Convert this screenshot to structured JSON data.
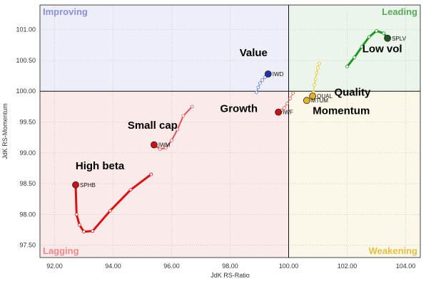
{
  "chart_data": {
    "type": "scatter",
    "xlabel": "JdK RS-Ratio",
    "ylabel": "JdK RS-Momentum",
    "xlim": [
      91.5,
      104.5
    ],
    "ylim": [
      97.3,
      101.4
    ],
    "center": [
      100,
      100
    ],
    "grid": true,
    "x_ticks": [
      92,
      94,
      96,
      98,
      100,
      102,
      104
    ],
    "x_tick_labels": [
      "92.00",
      "94.00",
      "96.00",
      "98.00",
      "100.00",
      "102.00",
      "104.00"
    ],
    "y_ticks": [
      97.5,
      98,
      98.5,
      99,
      99.5,
      100,
      100.5,
      101
    ],
    "y_tick_labels": [
      "97.50",
      "98.00",
      "98.50",
      "99.00",
      "99.50",
      "100.00",
      "100.50",
      "101.00"
    ],
    "quadrants": [
      {
        "name": "Improving",
        "position": "top-left",
        "color": "#8a8fd8",
        "fill": "#eeeef9"
      },
      {
        "name": "Leading",
        "position": "top-right",
        "color": "#55aa55",
        "fill": "#ebf5eb"
      },
      {
        "name": "Lagging",
        "position": "bottom-left",
        "color": "#ee8888",
        "fill": "#fbeaea"
      },
      {
        "name": "Weakening",
        "position": "bottom-right",
        "color": "#e8c040",
        "fill": "#fbf8ea"
      }
    ],
    "series": [
      {
        "symbol": "SPLV",
        "color": "#1e9a1e",
        "head_color": "#1f5c1f",
        "width": 3,
        "x": [
          102.0,
          102.25,
          102.5,
          102.75,
          103.0,
          103.25,
          103.38
        ],
        "y": [
          100.4,
          100.55,
          100.72,
          100.88,
          100.98,
          100.94,
          100.86
        ]
      },
      {
        "symbol": "IWD",
        "color": "#5577cc",
        "head_color": "#2233aa",
        "width": 1,
        "x": [
          98.9,
          98.96,
          99.02,
          99.1,
          99.2,
          99.3
        ],
        "y": [
          99.98,
          100.06,
          100.13,
          100.18,
          100.23,
          100.28
        ]
      },
      {
        "symbol": "QUAL",
        "color": "#e6c41e",
        "head_color": "#e6b422",
        "width": 1,
        "x": [
          101.05,
          101.0,
          100.96,
          100.92,
          100.88,
          100.85,
          100.82
        ],
        "y": [
          100.45,
          100.38,
          100.3,
          100.2,
          100.1,
          99.98,
          99.92
        ]
      },
      {
        "symbol": "MTUM",
        "color": "#e6c41e",
        "head_color": "#e6b422",
        "width": 1,
        "x": [
          100.82,
          100.75,
          100.68,
          100.62
        ],
        "y": [
          99.88,
          99.87,
          99.86,
          99.85
        ]
      },
      {
        "symbol": "IWF",
        "color": "#e05555",
        "head_color": "#cc1111",
        "width": 1,
        "x": [
          100.15,
          100.05,
          99.95,
          99.85,
          99.75,
          99.65
        ],
        "y": [
          99.97,
          99.88,
          99.8,
          99.73,
          99.69,
          99.66
        ]
      },
      {
        "symbol": "IWM",
        "color": "#e05555",
        "head_color": "#cc1111",
        "width": 2,
        "x": [
          96.7,
          96.4,
          96.2,
          96.0,
          95.8,
          95.6,
          95.4
        ],
        "y": [
          99.75,
          99.6,
          99.38,
          99.2,
          99.08,
          99.06,
          99.13
        ]
      },
      {
        "symbol": "SPHB",
        "color": "#dd1111",
        "head_color": "#cc1111",
        "width": 3,
        "x": [
          95.3,
          94.6,
          93.9,
          93.3,
          93.0,
          92.85,
          92.75,
          92.72
        ],
        "y": [
          98.65,
          98.4,
          98.06,
          97.73,
          97.72,
          97.83,
          98.0,
          98.48
        ]
      }
    ],
    "annotations": [
      {
        "text": "Value",
        "x": 98.8,
        "y": 100.57
      },
      {
        "text": "Low vol",
        "x": 103.2,
        "y": 100.63
      },
      {
        "text": "Quality",
        "x": 102.18,
        "y": 99.93
      },
      {
        "text": "Growth",
        "x": 98.3,
        "y": 99.66
      },
      {
        "text": "Momentum",
        "x": 101.8,
        "y": 99.63
      },
      {
        "text": "Small cap",
        "x": 95.35,
        "y": 99.39
      },
      {
        "text": "High beta",
        "x": 93.55,
        "y": 98.73
      }
    ]
  }
}
